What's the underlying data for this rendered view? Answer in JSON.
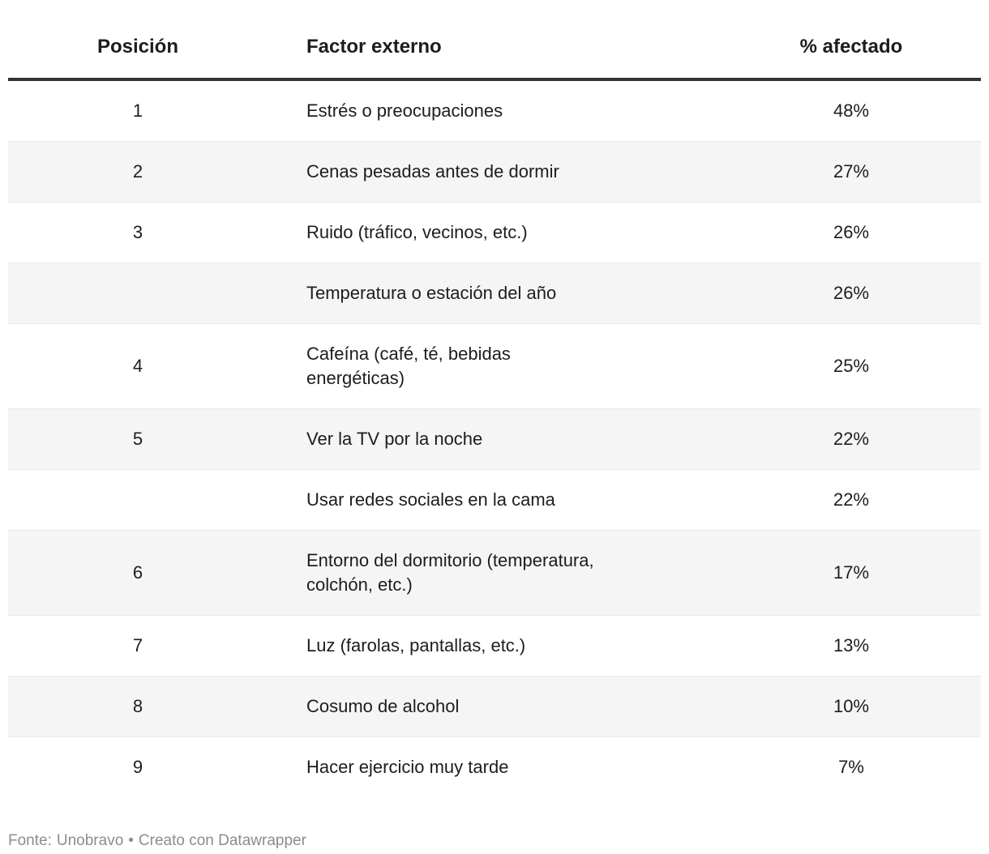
{
  "chart_data": {
    "type": "table",
    "columns": [
      "Posición",
      "Factor externo",
      "% afectado"
    ],
    "rows": [
      {
        "position": "1",
        "factor": "Estrés o preocupaciones",
        "pct": "48%"
      },
      {
        "position": "2",
        "factor": "Cenas pesadas antes de dormir",
        "pct": "27%"
      },
      {
        "position": "3",
        "factor": "Ruido (tráfico, vecinos, etc.)",
        "pct": "26%"
      },
      {
        "position": "",
        "factor": "Temperatura o estación del año",
        "pct": "26%"
      },
      {
        "position": "4",
        "factor": "Cafeína (café, té, bebidas\nenergéticas)",
        "pct": "25%"
      },
      {
        "position": "5",
        "factor": "Ver la TV por la noche",
        "pct": "22%"
      },
      {
        "position": "",
        "factor": "Usar redes sociales en la cama",
        "pct": "22%"
      },
      {
        "position": "6",
        "factor": "Entorno del dormitorio (temperatura,\ncolchón, etc.)",
        "pct": "17%"
      },
      {
        "position": "7",
        "factor": "Luz (farolas, pantallas, etc.)",
        "pct": "13%"
      },
      {
        "position": "8",
        "factor": "Cosumo de alcohol",
        "pct": "10%"
      },
      {
        "position": "9",
        "factor": "Hacer ejercicio muy tarde",
        "pct": "7%"
      }
    ],
    "title": "",
    "legend": "none",
    "layout_hints": {
      "striped": true,
      "position_align": "center",
      "factor_align": "left",
      "pct_align": "center"
    }
  },
  "footer": {
    "source_label": "Fonte:",
    "source_name": "Unobravo",
    "separator": "•",
    "attribution": "Creato con Datawrapper"
  },
  "colors": {
    "text": "#1d1d1d",
    "header_rule": "#333333",
    "stripe": "#f5f5f5",
    "row_border": "#e8e8e8",
    "footer_text": "#8c8c8c"
  }
}
